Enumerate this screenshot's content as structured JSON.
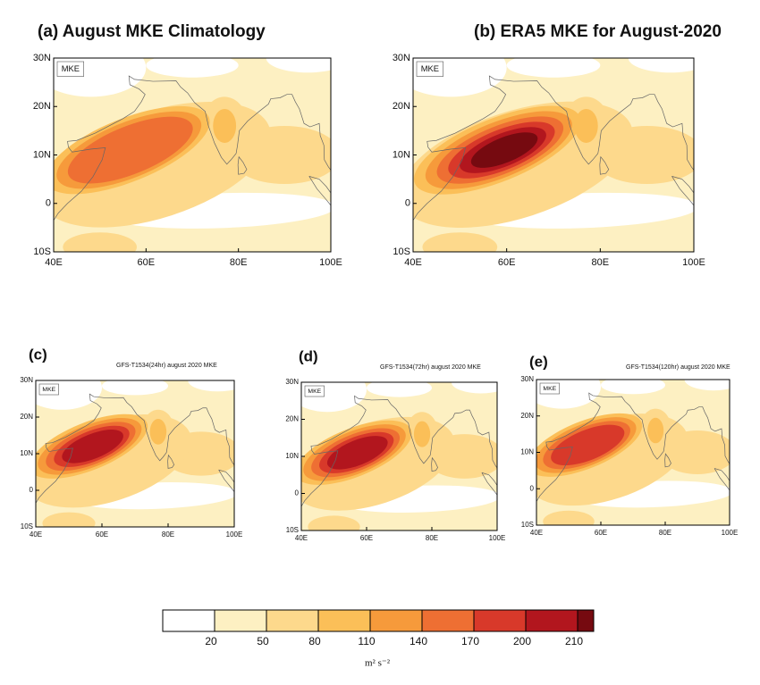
{
  "panels": [
    {
      "label": "(a) August MKE Climatology"
    },
    {
      "label": "(b) ERA5 MKE for August-2020"
    },
    {
      "label": "(c)",
      "title": "GFS-T1534(24hr) august 2020 MKE"
    },
    {
      "label": "(d)",
      "title": "GFS-T1534(72hr) august 2020 MKE"
    },
    {
      "label": "(e)",
      "title": "GFS-T1534(120hr) august 2020 MKE"
    }
  ],
  "field_label": "MKE",
  "axes": {
    "lat_labels": [
      "30N",
      "20N",
      "10N",
      "0",
      "10S"
    ],
    "lon_labels": [
      "40E",
      "60E",
      "80E",
      "100E"
    ]
  },
  "colorbar": {
    "ticks": [
      20,
      50,
      80,
      110,
      140,
      170,
      200,
      210
    ],
    "colors": [
      "#ffffff",
      "#fdf0c2",
      "#fdd98c",
      "#fbbf58",
      "#f69a3b",
      "#ee6f33",
      "#d8392a",
      "#b2161e",
      "#760a10"
    ],
    "unit": "m² s⁻²"
  }
}
